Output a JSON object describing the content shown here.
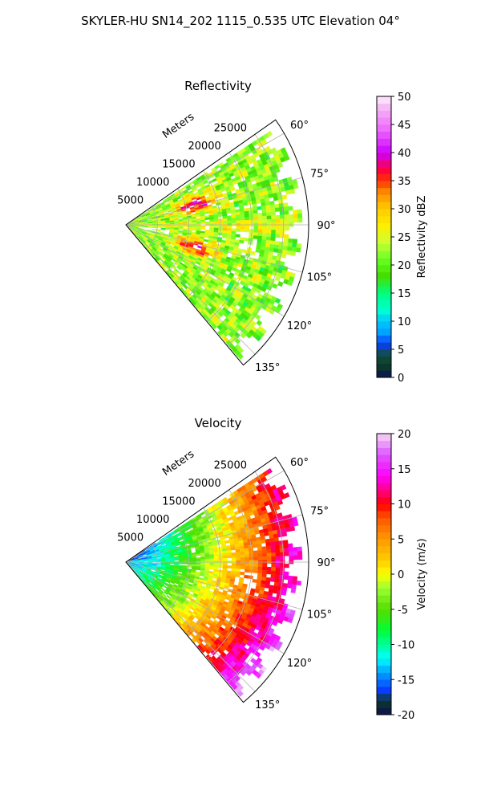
{
  "figure": {
    "title": "SKYLER-HU  SN14_202  1115_0.535 UTC Elevation 04°"
  },
  "chart_data": [
    {
      "type": "heatmap",
      "subtype": "polar-sector",
      "title": "Reflectivity",
      "range_label": "Meters",
      "range_ticks": [
        5000,
        10000,
        15000,
        20000,
        25000
      ],
      "range_tick_labels": [
        "5000",
        "10000",
        "15000",
        "20000",
        "25000"
      ],
      "azimuth_ticks": [
        60,
        75,
        90,
        105,
        120,
        135
      ],
      "azimuth_tick_labels": [
        "60°",
        "75°",
        "90°",
        "105°",
        "120°",
        "135°"
      ],
      "azimuth_range": [
        55,
        140
      ],
      "range_max": 29000,
      "grid": true,
      "colorbar": {
        "label": "Reflectivity dBZ",
        "vmin": 0,
        "vmax": 50,
        "ticks": [
          0,
          5,
          10,
          15,
          20,
          25,
          30,
          35,
          40,
          45,
          50
        ],
        "tick_labels": [
          "0",
          "5",
          "10",
          "15",
          "20",
          "25",
          "30",
          "35",
          "40",
          "45",
          "50"
        ],
        "stops": [
          [
            0,
            "#0a0f52"
          ],
          [
            2,
            "#0c3a2a"
          ],
          [
            4,
            "#10503a"
          ],
          [
            6,
            "#0a3cff"
          ],
          [
            8,
            "#00a0ff"
          ],
          [
            10,
            "#00c8ff"
          ],
          [
            12,
            "#00ffd0"
          ],
          [
            15,
            "#00ff80"
          ],
          [
            18,
            "#44dd00"
          ],
          [
            21,
            "#66ff22"
          ],
          [
            24,
            "#ccff33"
          ],
          [
            27,
            "#ffee00"
          ],
          [
            30,
            "#ffcc00"
          ],
          [
            33,
            "#ff8800"
          ],
          [
            35,
            "#ff3300"
          ],
          [
            37,
            "#ff0040"
          ],
          [
            40,
            "#cc00ff"
          ],
          [
            44,
            "#ee66ff"
          ],
          [
            48,
            "#f5b8f5"
          ],
          [
            50,
            "#ffeeff"
          ]
        ]
      },
      "field_description_values": {
        "background_dbz": 22,
        "core_dbz_max": 38
      }
    },
    {
      "type": "heatmap",
      "subtype": "polar-sector",
      "title": "Velocity",
      "range_label": "Meters",
      "range_ticks": [
        5000,
        10000,
        15000,
        20000,
        25000
      ],
      "range_tick_labels": [
        "5000",
        "10000",
        "15000",
        "20000",
        "25000"
      ],
      "azimuth_ticks": [
        60,
        75,
        90,
        105,
        120,
        135
      ],
      "azimuth_tick_labels": [
        "60°",
        "75°",
        "90°",
        "105°",
        "120°",
        "135°"
      ],
      "azimuth_range": [
        55,
        140
      ],
      "range_max": 29000,
      "grid": true,
      "colorbar": {
        "label": "Velocity (m/s)",
        "vmin": -20,
        "vmax": 20,
        "ticks": [
          -20,
          -15,
          -10,
          -5,
          0,
          5,
          10,
          15,
          20
        ],
        "tick_labels": [
          "-20",
          "-15",
          "-10",
          "-5",
          "0",
          "5",
          "10",
          "15",
          "20"
        ],
        "stops": [
          [
            -20,
            "#0a0f52"
          ],
          [
            -18,
            "#0c3a2a"
          ],
          [
            -16.5,
            "#0a3cff"
          ],
          [
            -14,
            "#00a0ff"
          ],
          [
            -12,
            "#00ffff"
          ],
          [
            -10,
            "#00ff99"
          ],
          [
            -8,
            "#00ff33"
          ],
          [
            -5,
            "#55dd00"
          ],
          [
            -2,
            "#99ff33"
          ],
          [
            0,
            "#ffff00"
          ],
          [
            2,
            "#ffcc00"
          ],
          [
            5,
            "#ff9900"
          ],
          [
            8,
            "#ff5500"
          ],
          [
            10,
            "#ff0000"
          ],
          [
            12,
            "#ff0088"
          ],
          [
            14,
            "#ff00ff"
          ],
          [
            17,
            "#dd55ff"
          ],
          [
            20,
            "#f7d6f7"
          ]
        ]
      }
    }
  ]
}
